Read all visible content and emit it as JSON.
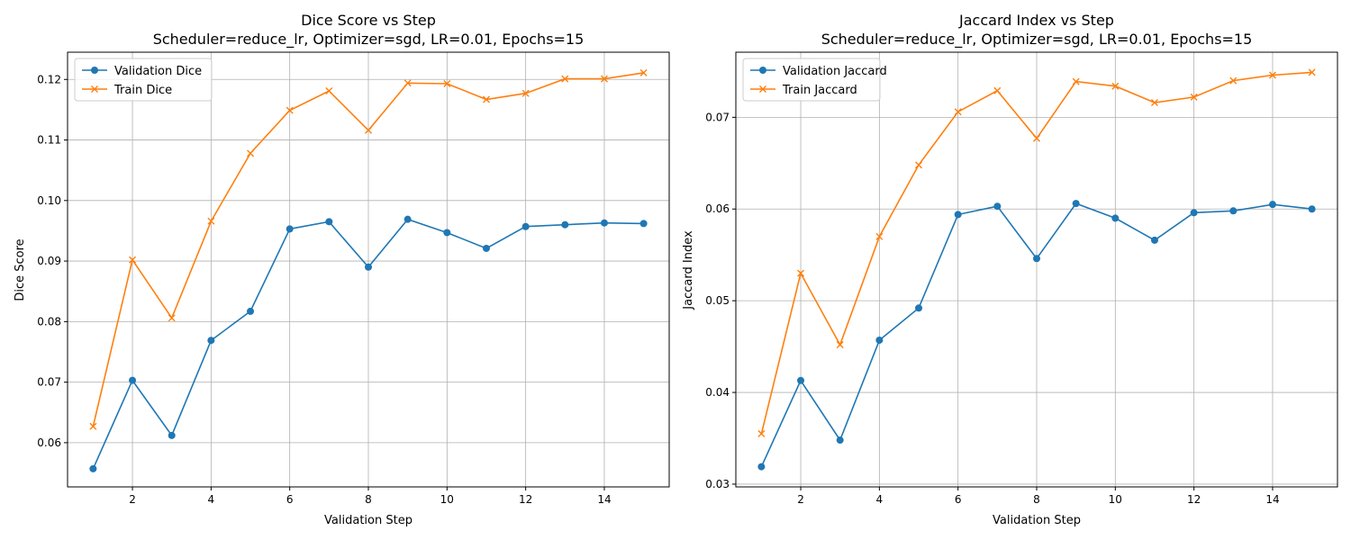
{
  "chart_data": [
    {
      "type": "line",
      "title": "Dice Score vs Step",
      "subtitle": "Scheduler=reduce_lr, Optimizer=sgd, LR=0.01, Epochs=15",
      "xlabel": "Validation Step",
      "ylabel": "Dice Score",
      "xlim": [
        0.35,
        15.65
      ],
      "ylim": [
        0.0527,
        0.1245
      ],
      "xticks": [
        2,
        4,
        6,
        8,
        10,
        12,
        14
      ],
      "yticks": [
        0.06,
        0.07,
        0.08,
        0.09,
        0.1,
        0.11,
        0.12
      ],
      "ytick_labels": [
        "0.06",
        "0.07",
        "0.08",
        "0.09",
        "0.10",
        "0.11",
        "0.12"
      ],
      "grid": true,
      "legend_position": "upper-left",
      "x": [
        1,
        2,
        3,
        4,
        5,
        6,
        7,
        8,
        9,
        10,
        11,
        12,
        13,
        14,
        15
      ],
      "series": [
        {
          "name": "Validation Dice",
          "color": "#1f77b4",
          "marker": "circle",
          "values": [
            0.0557,
            0.0703,
            0.0612,
            0.0769,
            0.0817,
            0.0953,
            0.0965,
            0.089,
            0.0969,
            0.0947,
            0.0921,
            0.0957,
            0.096,
            0.0963,
            0.0962
          ]
        },
        {
          "name": "Train Dice",
          "color": "#ff7f0e",
          "marker": "x",
          "values": [
            0.0627,
            0.0902,
            0.0806,
            0.0966,
            0.1078,
            0.1149,
            0.1181,
            0.1116,
            0.1194,
            0.1193,
            0.1167,
            0.1177,
            0.1201,
            0.1201,
            0.1211
          ]
        }
      ]
    },
    {
      "type": "line",
      "title": "Jaccard Index vs Step",
      "subtitle": "Scheduler=reduce_lr, Optimizer=sgd, LR=0.01, Epochs=15",
      "xlabel": "Validation Step",
      "ylabel": "Jaccard Index",
      "xlim": [
        0.35,
        15.65
      ],
      "ylim": [
        0.0297,
        0.0771
      ],
      "xticks": [
        2,
        4,
        6,
        8,
        10,
        12,
        14
      ],
      "yticks": [
        0.03,
        0.04,
        0.05,
        0.06,
        0.07
      ],
      "ytick_labels": [
        "0.03",
        "0.04",
        "0.05",
        "0.06",
        "0.07"
      ],
      "grid": true,
      "legend_position": "upper-left",
      "x": [
        1,
        2,
        3,
        4,
        5,
        6,
        7,
        8,
        9,
        10,
        11,
        12,
        13,
        14,
        15
      ],
      "series": [
        {
          "name": "Validation Jaccard",
          "color": "#1f77b4",
          "marker": "circle",
          "values": [
            0.0319,
            0.0413,
            0.0348,
            0.0457,
            0.0492,
            0.0594,
            0.0603,
            0.0546,
            0.0606,
            0.059,
            0.0566,
            0.0596,
            0.0598,
            0.0605,
            0.06
          ]
        },
        {
          "name": "Train Jaccard",
          "color": "#ff7f0e",
          "marker": "x",
          "values": [
            0.0355,
            0.053,
            0.0452,
            0.057,
            0.0648,
            0.0706,
            0.0729,
            0.0677,
            0.0739,
            0.0734,
            0.0716,
            0.0722,
            0.074,
            0.0746,
            0.0749
          ]
        }
      ]
    }
  ]
}
